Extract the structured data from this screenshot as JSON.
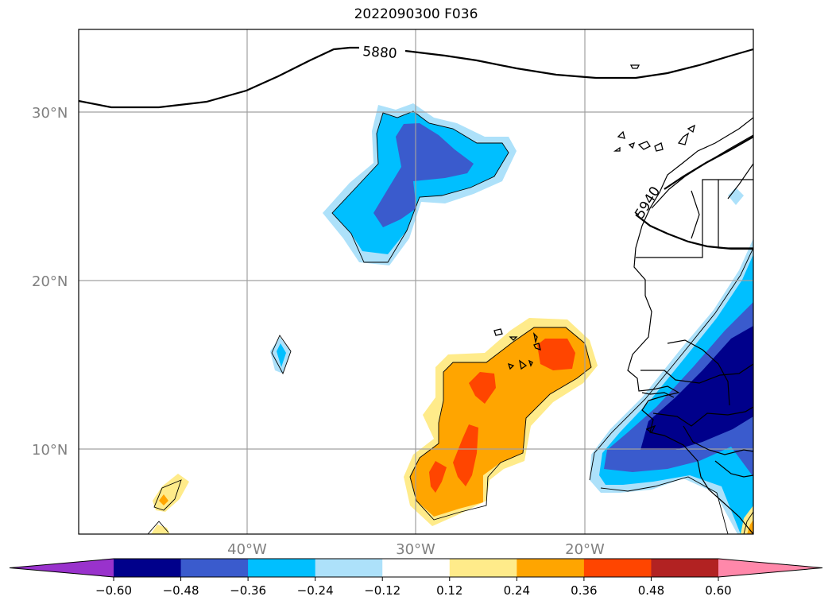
{
  "title": "2022090300 F036",
  "lat_labels": [
    "30°N",
    "20°N",
    "10°N"
  ],
  "lon_labels": [
    "40°W",
    "30°W",
    "20°W"
  ],
  "contour_labels": [
    "5880",
    "5940"
  ],
  "colorbar": {
    "colors": [
      "#9932CC",
      "#00008B",
      "#3A5BCD",
      "#00BFFF",
      "#ADE1FA",
      "#FFFFFF",
      "#FFEB8A",
      "#FFA500",
      "#FF4500",
      "#B22222",
      "#FF88AA"
    ],
    "ticks": [
      "−0.60",
      "−0.48",
      "−0.36",
      "−0.24",
      "−0.12",
      "0.12",
      "0.24",
      "0.36",
      "0.48",
      "0.60"
    ]
  }
}
